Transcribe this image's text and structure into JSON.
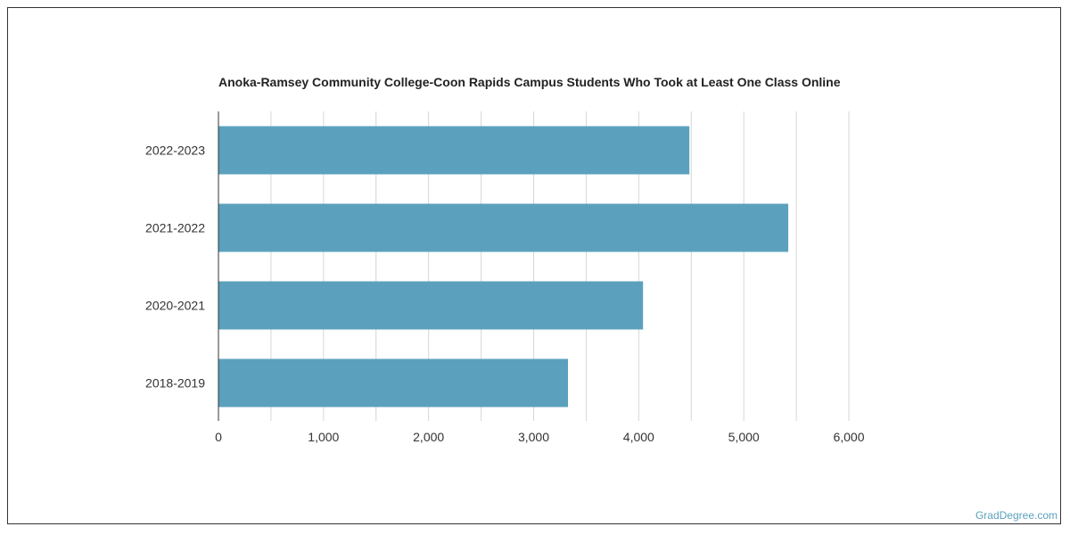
{
  "chart_data": {
    "type": "bar",
    "orientation": "horizontal",
    "title": "Anoka-Ramsey Community College-Coon Rapids Campus Students Who Took at Least One Class Online",
    "xlabel": "",
    "ylabel": "",
    "categories": [
      "2022-2023",
      "2021-2022",
      "2020-2021",
      "2018-2019"
    ],
    "values": [
      4482,
      5423,
      4041,
      3327
    ],
    "xlim": [
      0,
      6000
    ],
    "x_ticks": [
      0,
      1000,
      2000,
      3000,
      4000,
      5000,
      6000
    ],
    "x_tick_labels": [
      "0",
      "1,000",
      "2,000",
      "3,000",
      "4,000",
      "5,000",
      "6,000"
    ],
    "grid": true,
    "bar_color": "#5ba1bd",
    "grid_color": "#d6d6d6"
  },
  "watermark": "GradDegree.com"
}
